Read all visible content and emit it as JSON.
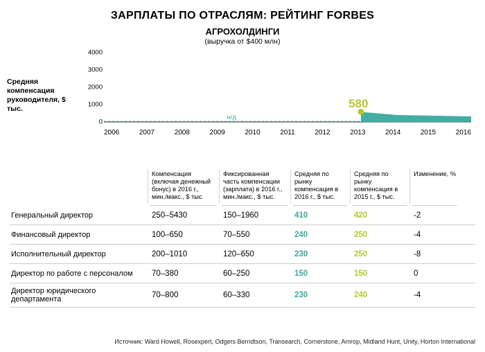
{
  "title": "ЗАРПЛАТЫ ПО ОТРАСЛЯМ: РЕЙТИНГ FORBES",
  "subtitle": "АГРОХОЛДИНГИ",
  "subnote": "(выручка от $400 млн)",
  "chart": {
    "type": "area",
    "ylabel": "Средняя компенсация руководителя, $ тыс.",
    "ylim": [
      0,
      4000
    ],
    "ytick_step": 1000,
    "yticks": [
      "0",
      "1000",
      "2000",
      "3000",
      "4000"
    ],
    "x_years": [
      "2006",
      "2007",
      "2008",
      "2009",
      "2010",
      "2011",
      "2012",
      "2013",
      "2014",
      "2015",
      "2016"
    ],
    "series_start_year": 2013,
    "series_values": [
      580,
      400,
      360,
      320
    ],
    "no_data_label": "н/д",
    "callout_value": "580",
    "callout_color": "#b5c728",
    "area_color": "#3aa99e",
    "dot_color": "#b5c728",
    "axis_color": "#333333",
    "nd_color": "#3aa99e",
    "background_color": "#ffffff"
  },
  "table": {
    "columns": [
      "",
      "Компенсация (включая денежный бонус) в 2016 г., мин./макс., $ тыс.",
      "Фиксированная часть компенсации (зарплата) в 2016 г., мин./макс., $ тыс.",
      "Средняя по рынку компенсация в 2016 г., $ тыс.",
      "Средняя по рынку компенсация в 2015 г., $ тыс.",
      "Изменение, %"
    ],
    "col2016_color": "#3aa99e",
    "col2015_color": "#b5c728",
    "rows": [
      {
        "role": "Генеральный директор",
        "comp": "250–5430",
        "fixed": "150–1960",
        "avg16": "410",
        "avg15": "420",
        "chg": "-2"
      },
      {
        "role": "Финансовый директор",
        "comp": "100–650",
        "fixed": "70–550",
        "avg16": "240",
        "avg15": "250",
        "chg": "-4"
      },
      {
        "role": "Исполнительный директор",
        "comp": "200–1010",
        "fixed": "120–650",
        "avg16": "230",
        "avg15": "250",
        "chg": "-8"
      },
      {
        "role": "Директор по работе с персоналом",
        "comp": "70–380",
        "fixed": "60–250",
        "avg16": "150",
        "avg15": "150",
        "chg": "0"
      },
      {
        "role": "Директор юридического департамента",
        "comp": "70–800",
        "fixed": "60–330",
        "avg16": "230",
        "avg15": "240",
        "chg": "-4"
      }
    ]
  },
  "source": "Источник: Ward Howell, Rosexpert, Odgers Berndtson, Transearch, Cornerstone, Amrop, Midland Hunt, Unity, Horton International"
}
